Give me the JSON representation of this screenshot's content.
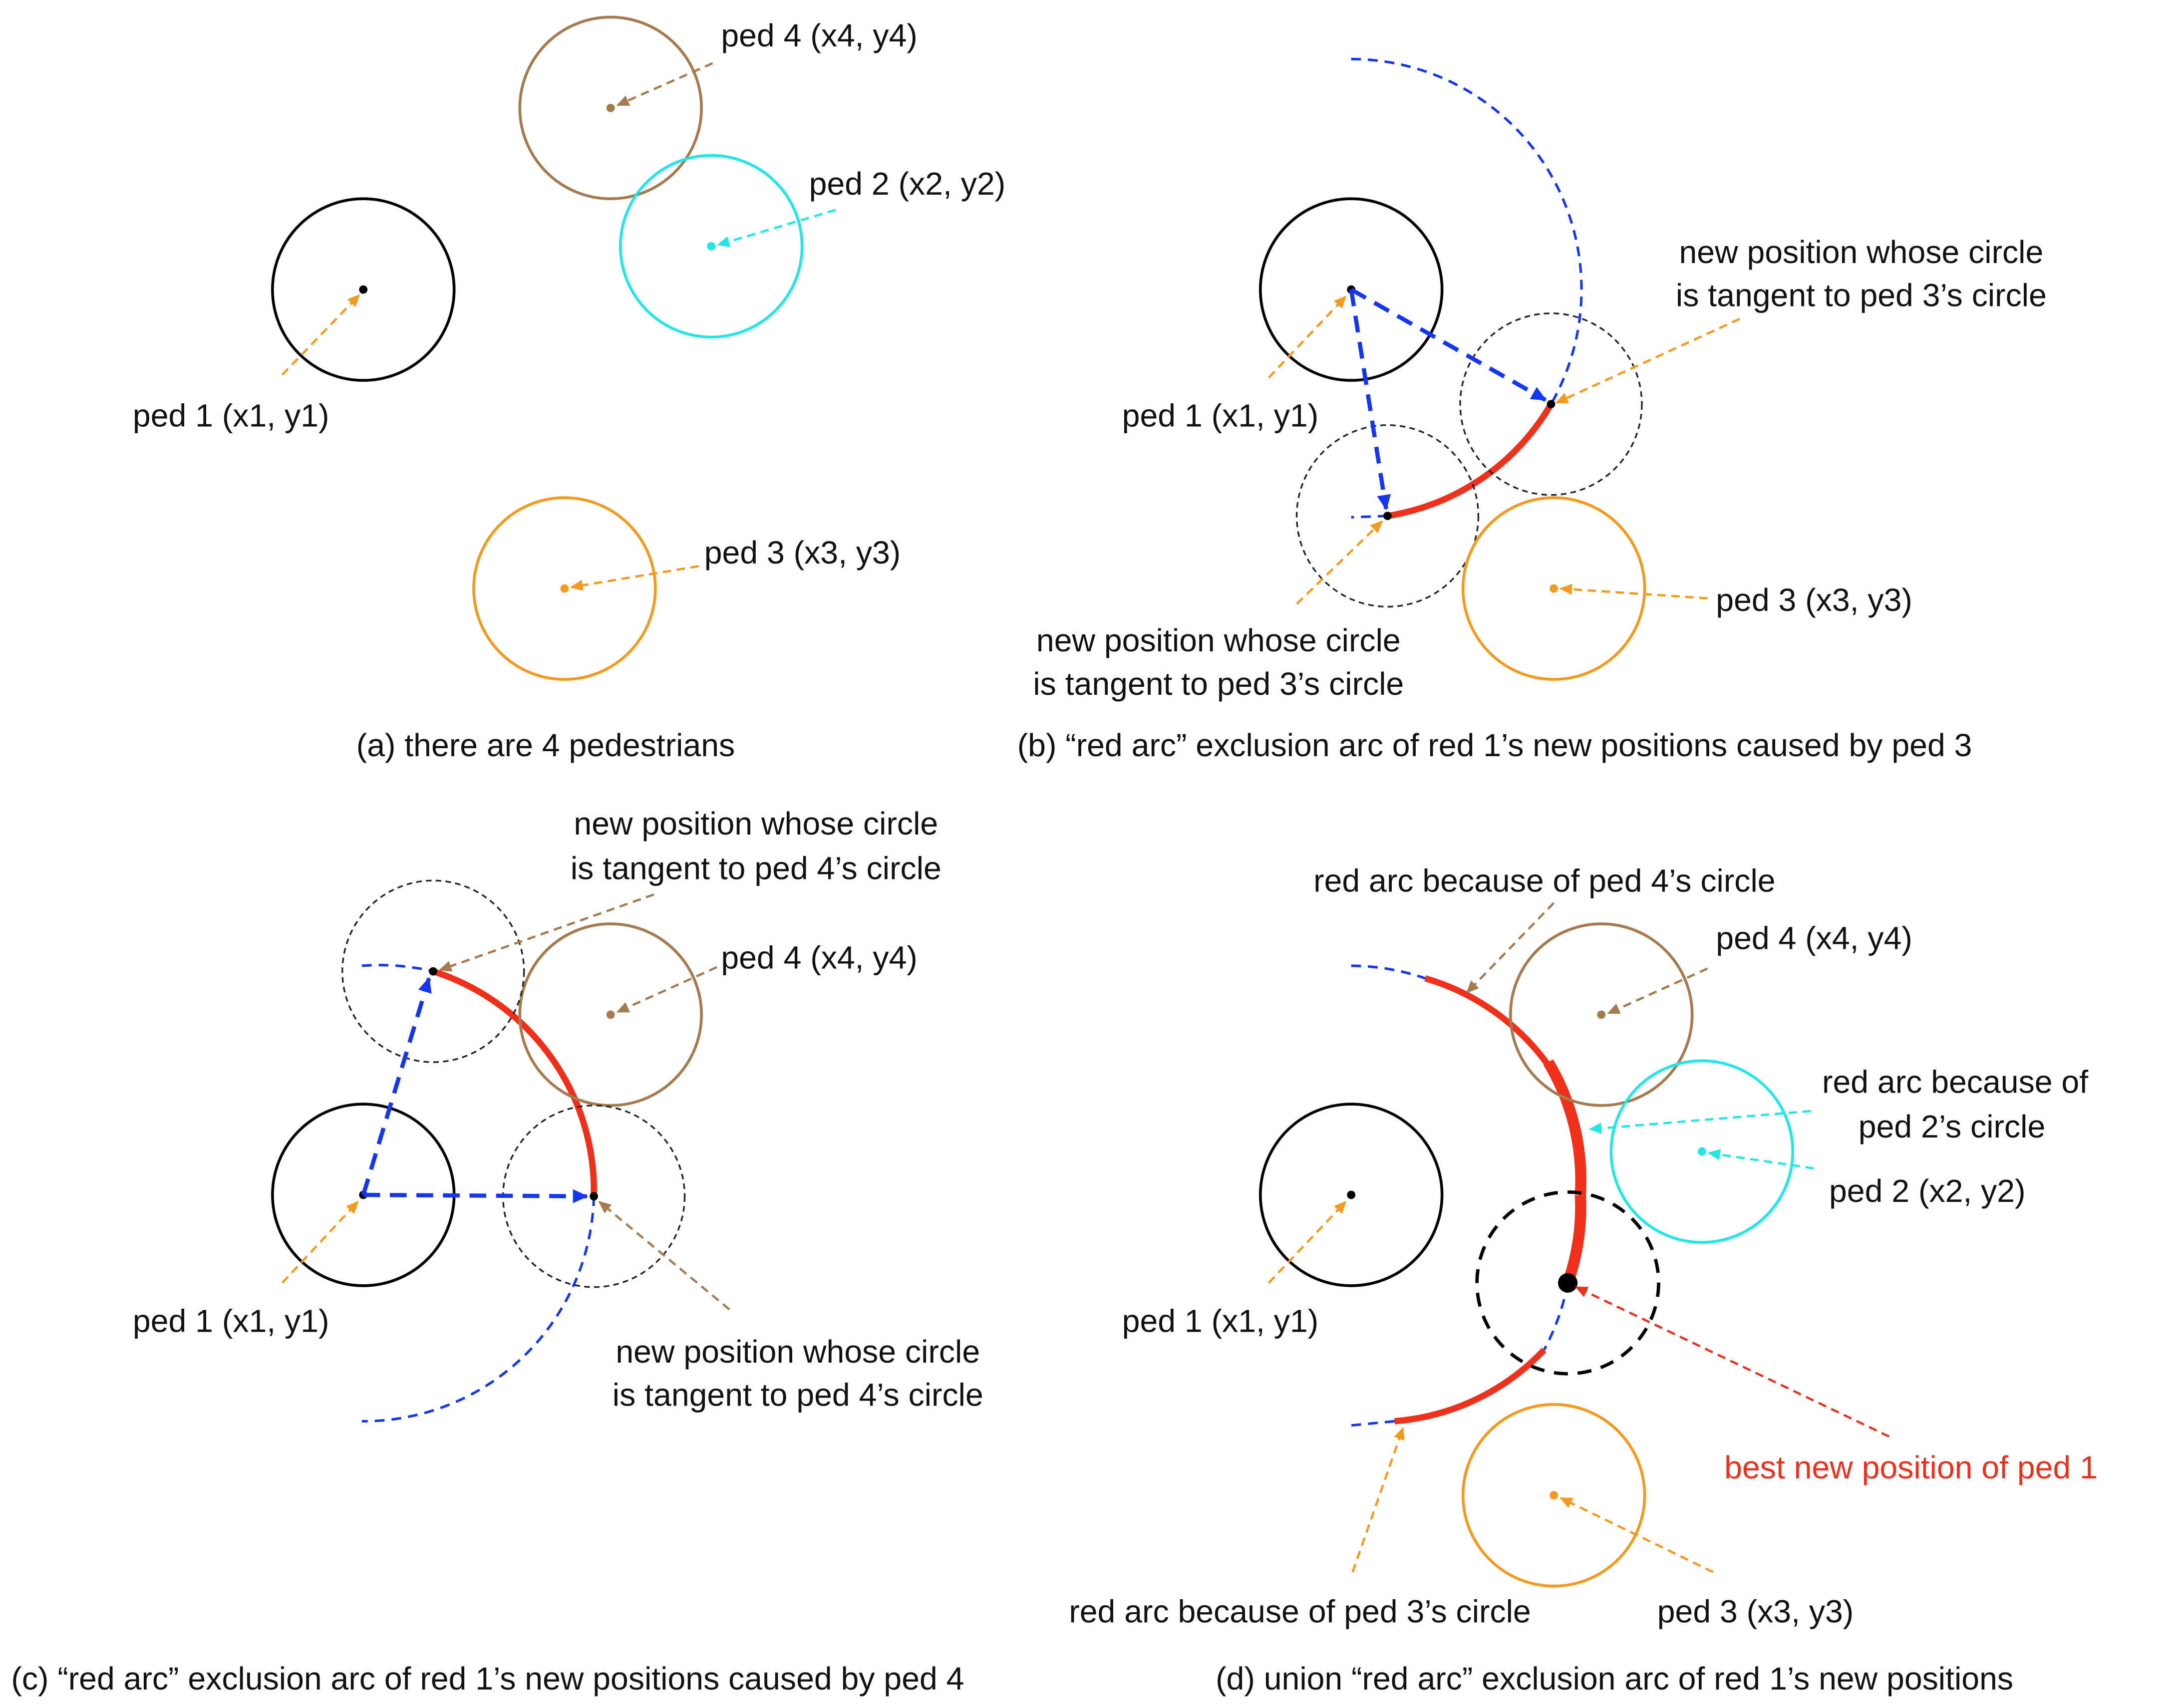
{
  "colors": {
    "ped1": "#000000",
    "ped2": "#22e6e6",
    "ped3": "#f39a1e",
    "ped4": "#a57a4e",
    "arrow_blue": "#1436ee",
    "red_arc": "#f0301a",
    "leader_red": "#e8321e",
    "dashed_circle": "#222222"
  },
  "panel_a": {
    "ped1_label": "ped 1 (x1, y1)",
    "ped2_label": "ped 2 (x2, y2)",
    "ped3_label": "ped 3 (x3, y3)",
    "ped4_label": "ped 4 (x4, y4)",
    "caption": "(a) there are 4 pedestrians"
  },
  "panel_b": {
    "ped1_label": "ped 1 (x1, y1)",
    "ped3_label": "ped 3 (x3, y3)",
    "tangent_upper_line1": "new position whose circle",
    "tangent_upper_line2": "is tangent to ped 3’s circle",
    "tangent_lower_line1": "new position whose circle",
    "tangent_lower_line2": "is tangent to ped 3’s circle",
    "caption": "(b) “red arc” exclusion arc of red 1’s new positions caused by ped 3"
  },
  "panel_c": {
    "ped1_label": "ped 1 (x1, y1)",
    "ped4_label": "ped 4 (x4, y4)",
    "tangent_upper_line1": "new position whose circle",
    "tangent_upper_line2": "is tangent to ped 4’s circle",
    "tangent_lower_line1": "new position whose circle",
    "tangent_lower_line2": "is tangent to ped 4’s circle",
    "caption": "(c) “red arc” exclusion arc of red 1’s new positions caused by ped 4"
  },
  "panel_d": {
    "arc_ped4_label": "red arc because of ped 4’s circle",
    "ped4_label": "ped 4 (x4, y4)",
    "arc_ped2_line1": "red arc because of",
    "arc_ped2_line2": "ped 2’s circle",
    "ped2_label": "ped 2 (x2, y2)",
    "ped1_label": "ped 1 (x1, y1)",
    "best_label": "best new position of ped 1",
    "arc_ped3_label": "red arc because of ped 3’s circle",
    "ped3_label": "ped 3 (x3, y3)",
    "caption": "(d) union “red arc” exclusion arc of red 1’s new positions"
  }
}
